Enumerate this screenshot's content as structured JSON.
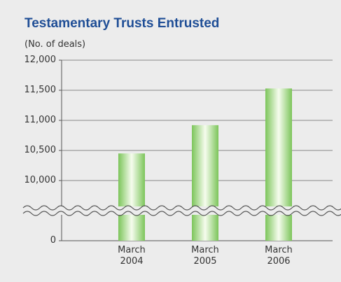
{
  "chart_data": {
    "type": "bar",
    "title": "Testamentary Trusts Entrusted",
    "y_label": "(No. of deals)",
    "categories": [
      "March 2004",
      "March 2005",
      "March 2006"
    ],
    "values": [
      10450,
      10920,
      11530
    ],
    "color": "#7cc55a",
    "ylim": [
      0,
      12000
    ],
    "axis_break": [
      0,
      10000
    ],
    "yticks": [
      0,
      {
        "value": 10000,
        "label": "10,000"
      },
      {
        "value": 10500,
        "label": "10,500"
      },
      {
        "value": 11000,
        "label": "11,000"
      },
      {
        "value": 11500,
        "label": "11,500"
      },
      {
        "value": 12000,
        "label": "12,000"
      }
    ],
    "grid": true
  }
}
